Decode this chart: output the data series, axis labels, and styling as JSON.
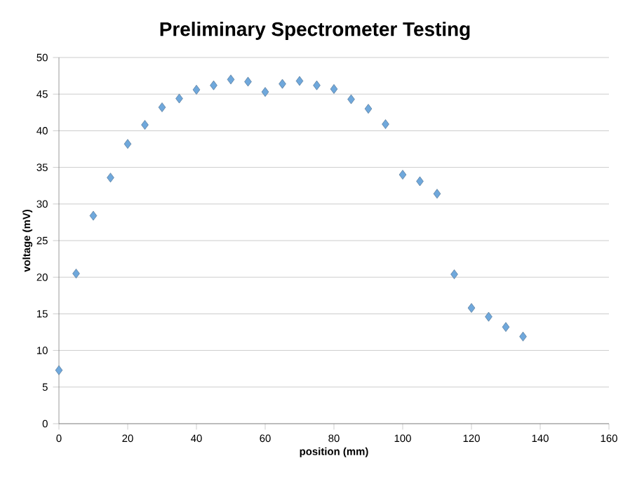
{
  "chart_data": {
    "type": "scatter",
    "title": "Preliminary Spectrometer Testing",
    "xlabel": "position (mm)",
    "ylabel": "voltage (mV)",
    "x": [
      0,
      5,
      10,
      15,
      20,
      25,
      30,
      35,
      40,
      45,
      50,
      55,
      60,
      65,
      70,
      75,
      80,
      85,
      90,
      95,
      100,
      105,
      110,
      115,
      120,
      125,
      130,
      135
    ],
    "values": [
      7.3,
      20.5,
      28.4,
      33.6,
      38.2,
      40.8,
      43.2,
      44.4,
      45.6,
      46.2,
      47.0,
      46.7,
      45.3,
      46.4,
      46.8,
      46.2,
      45.7,
      44.3,
      43.0,
      40.9,
      34.0,
      33.1,
      31.4,
      20.4,
      15.8,
      14.6,
      13.2,
      11.9
    ],
    "color": "#6fa8dc",
    "marker": "diamond",
    "grid": "y",
    "xlim": [
      0,
      160
    ],
    "xticks": [
      0,
      20,
      40,
      60,
      80,
      100,
      120,
      140,
      160
    ],
    "ylim": [
      0,
      50
    ],
    "yticks": [
      0,
      5,
      10,
      15,
      20,
      25,
      30,
      35,
      40,
      45,
      50
    ]
  }
}
